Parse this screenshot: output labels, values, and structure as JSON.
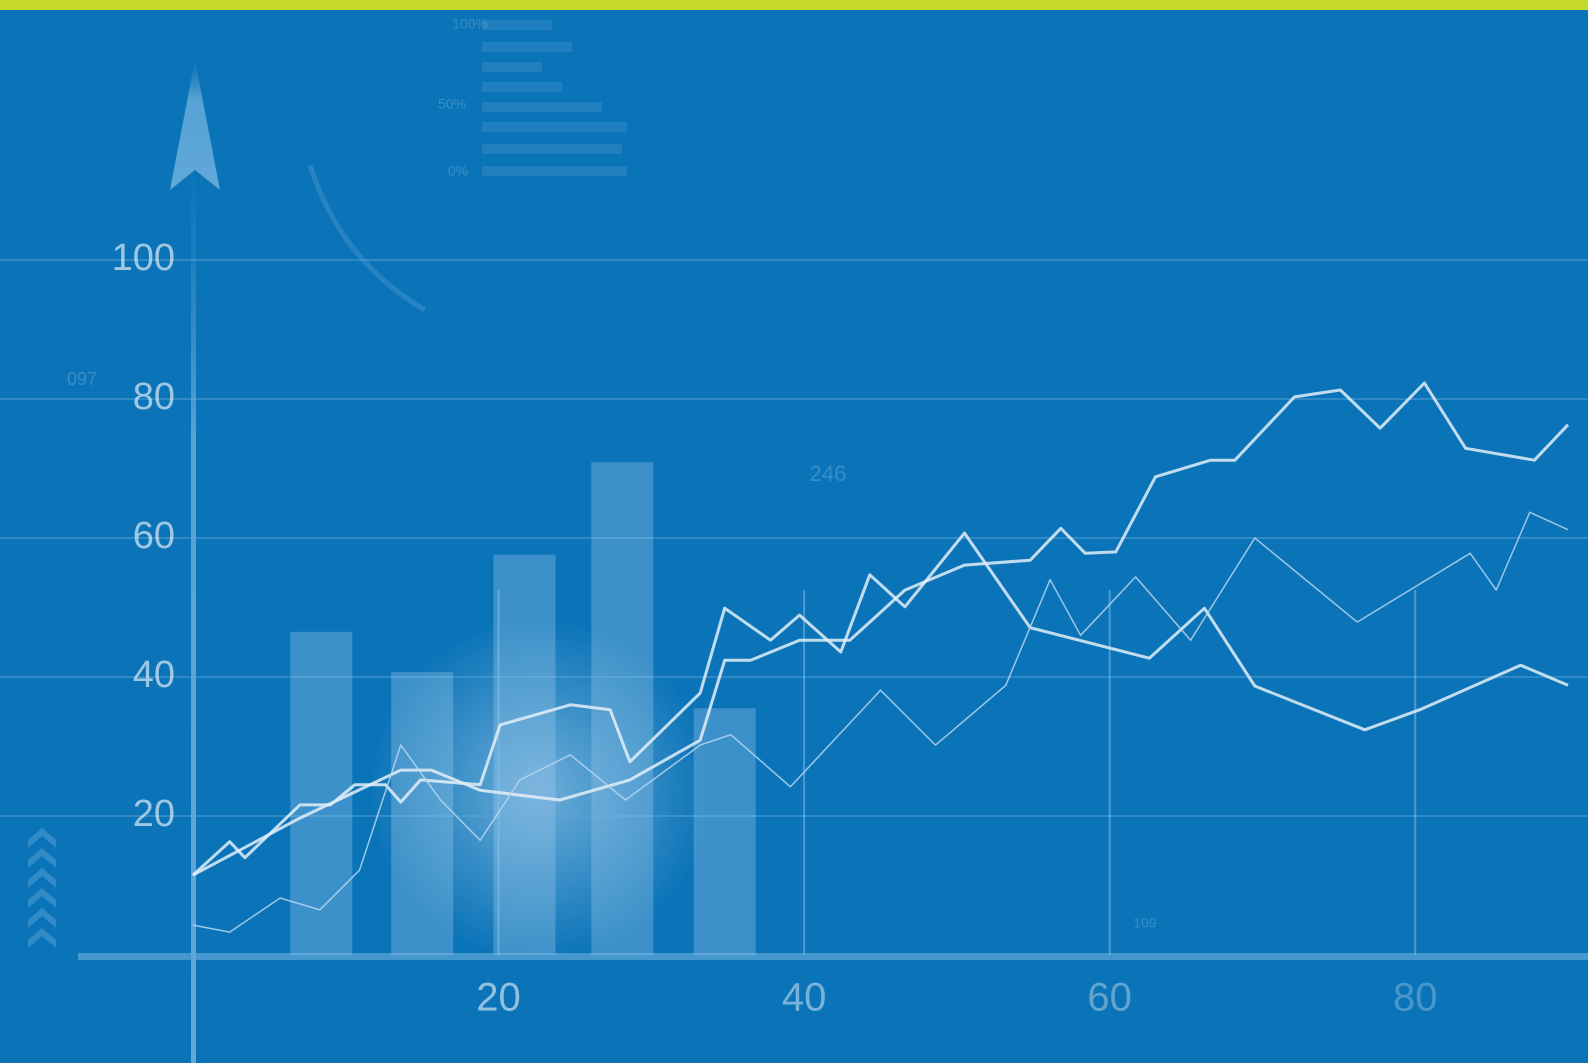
{
  "chart_data": {
    "type": "line",
    "xlim": [
      0,
      90
    ],
    "xticks": [
      20,
      40,
      60,
      80
    ],
    "ylim": [
      0,
      100
    ],
    "yticks": [
      20,
      40,
      60,
      80,
      100
    ],
    "grid": true,
    "annotations": [
      "100%",
      "50%",
      "0%",
      "097",
      "246",
      "109"
    ],
    "series": [
      {
        "type": "bar",
        "color": "#9cc8ea",
        "x": [
          8.4,
          15.0,
          21.7,
          28.1,
          34.8
        ],
        "values": [
          46.5,
          40.7,
          57.6,
          70.9,
          35.5
        ]
      },
      {
        "color": "#e3eef8",
        "x": [
          0,
          2.4,
          3.4,
          7.0,
          9.0,
          10.6,
          12.6,
          13.6,
          14.9,
          18.8,
          20.1,
          24.7,
          27.3,
          28.6,
          33.2,
          34.8,
          37.8,
          39.7,
          42.4,
          44.3,
          46.6,
          50.5,
          54.8,
          62.6,
          66.2,
          69.5,
          76.7,
          80.3,
          86.9,
          90
        ],
        "values": [
          11.5,
          16.3,
          14.0,
          21.6,
          21.6,
          24.5,
          24.5,
          22.0,
          25.2,
          24.5,
          33.1,
          36.0,
          35.3,
          27.8,
          37.7,
          49.9,
          45.3,
          48.9,
          43.6,
          54.7,
          50.1,
          60.7,
          47.1,
          42.7,
          49.9,
          38.7,
          32.4,
          35.3,
          41.7,
          38.8
        ]
      },
      {
        "color": "#e3eef8",
        "x": [
          0,
          7.0,
          13.6,
          15.6,
          18.8,
          24.0,
          28.6,
          33.2,
          34.8,
          36.5,
          39.7,
          43.0,
          46.6,
          50.5,
          54.8,
          56.8,
          58.4,
          60.4,
          63.0,
          66.6,
          68.2,
          72.1,
          75.1,
          77.7,
          80.6,
          83.3,
          87.8,
          90
        ],
        "values": [
          11.5,
          19.7,
          26.6,
          26.6,
          23.7,
          22.3,
          25.2,
          30.9,
          42.4,
          42.4,
          45.3,
          45.3,
          52.5,
          56.1,
          56.8,
          61.4,
          57.8,
          58.0,
          68.8,
          71.2,
          71.2,
          80.3,
          81.3,
          75.8,
          82.3,
          72.9,
          71.2,
          76.3
        ]
      },
      {
        "color": "#b9d6ef",
        "x": [
          0,
          2.4,
          5.7,
          8.3,
          10.9,
          13.6,
          16.2,
          18.8,
          21.4,
          24.7,
          28.3,
          33.2,
          35.2,
          39.1,
          45.0,
          48.6,
          53.2,
          56.1,
          58.1,
          61.7,
          65.3,
          69.5,
          76.2,
          83.6,
          85.3,
          87.5,
          90
        ],
        "values": [
          4.3,
          3.3,
          8.2,
          6.5,
          12.2,
          30.2,
          22.3,
          16.5,
          25.2,
          28.8,
          22.3,
          30.2,
          31.7,
          24.2,
          38.1,
          30.2,
          38.8,
          54.0,
          46.0,
          54.4,
          45.3,
          60.0,
          47.9,
          57.8,
          52.5,
          63.7,
          61.2
        ]
      }
    ]
  }
}
